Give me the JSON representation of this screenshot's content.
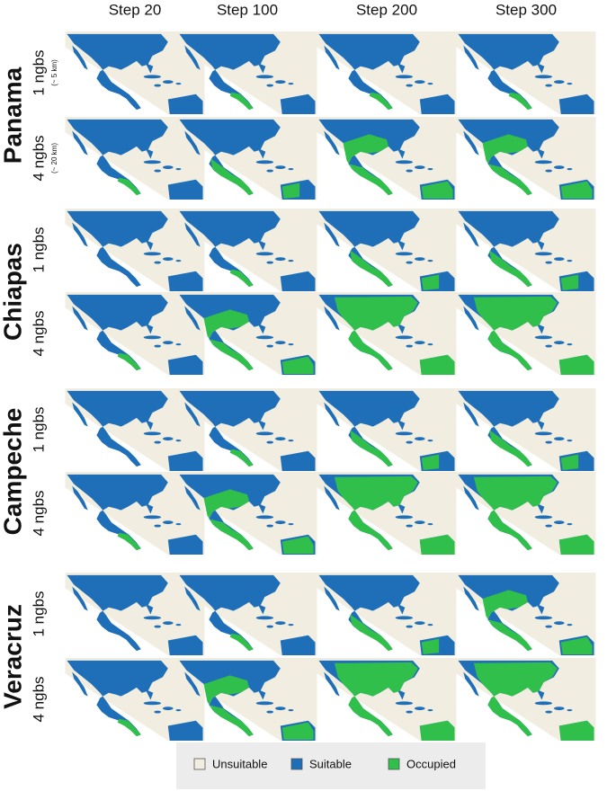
{
  "columns": [
    "Step 20",
    "Step 100",
    "Step 200",
    "Step 300"
  ],
  "groups": [
    {
      "name": "Panama",
      "rows": [
        {
          "label": "1 ngbs",
          "note": "(~ 5 km)"
        },
        {
          "label": "4 ngbs",
          "note": "(~ 20 km)"
        }
      ]
    },
    {
      "name": "Chiapas",
      "rows": [
        {
          "label": "1 ngbs"
        },
        {
          "label": "4 ngbs"
        }
      ]
    },
    {
      "name": "Campeche",
      "rows": [
        {
          "label": "1 ngbs"
        },
        {
          "label": "4 ngbs"
        }
      ]
    },
    {
      "name": "Veracruz",
      "rows": [
        {
          "label": "1 ngbs"
        },
        {
          "label": "4 ngbs"
        }
      ]
    }
  ],
  "legend": [
    {
      "label": "Unsuitable",
      "color": "#f1ede0"
    },
    {
      "label": "Suitable",
      "color": "#1f6fb8"
    },
    {
      "label": "Occupied",
      "color": "#2fbf4a"
    }
  ]
}
